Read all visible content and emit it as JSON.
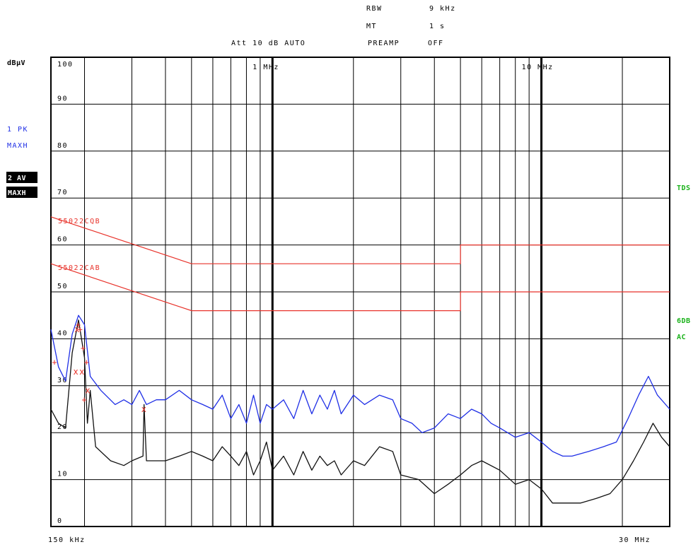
{
  "header": {
    "rbw_label": "RBW",
    "rbw_value": "9 kHz",
    "mt_label": "MT",
    "mt_value": "1 s",
    "att": "Att 10 dB AUTO",
    "preamp_label": "PREAMP",
    "preamp_value": "OFF"
  },
  "y_unit": "dBµV",
  "trace1_label": [
    "1 PK",
    "MAXH"
  ],
  "trace2_label": [
    "2 AV",
    "MAXH"
  ],
  "right_labels": {
    "tds": "TDS",
    "sixdb": "6DB",
    "ac": "AC"
  },
  "colors": {
    "pk": "#1f2fe6",
    "av": "#111111",
    "limit": "#e8322a",
    "grid": "#000000",
    "right": "#1ab21a"
  },
  "chart_data": {
    "type": "line",
    "x_scale": "log",
    "x_unit": "MHz",
    "xlim": [
      0.15,
      30
    ],
    "ylim": [
      0,
      100
    ],
    "y_ticks": [
      0,
      10,
      20,
      30,
      40,
      50,
      60,
      70,
      80,
      90,
      100
    ],
    "y_tick_labels": [
      "0",
      "10",
      "20",
      "30",
      "40",
      "50",
      "60",
      "70",
      "80",
      "90",
      "100"
    ],
    "x_tick_labels": [
      {
        "x": 0.15,
        "label": "150 kHz"
      },
      {
        "x": 1,
        "label": "1 MHz"
      },
      {
        "x": 10,
        "label": "10 MHz"
      },
      {
        "x": 30,
        "label": "30 MHz"
      }
    ],
    "limit_lines": [
      {
        "name": "55022CQB",
        "points": [
          [
            0.15,
            66
          ],
          [
            0.5,
            56
          ],
          [
            5,
            56
          ],
          [
            5,
            60
          ],
          [
            30,
            60
          ]
        ]
      },
      {
        "name": "55022CAB",
        "points": [
          [
            0.15,
            56
          ],
          [
            0.5,
            46
          ],
          [
            5,
            46
          ],
          [
            5,
            50
          ],
          [
            30,
            50
          ]
        ]
      }
    ],
    "series": [
      {
        "name": "1 PK MAXH",
        "points": [
          [
            0.15,
            42
          ],
          [
            0.16,
            34
          ],
          [
            0.17,
            31
          ],
          [
            0.18,
            41
          ],
          [
            0.19,
            45
          ],
          [
            0.2,
            43
          ],
          [
            0.21,
            32
          ],
          [
            0.23,
            29
          ],
          [
            0.26,
            26
          ],
          [
            0.28,
            27
          ],
          [
            0.3,
            26
          ],
          [
            0.32,
            29
          ],
          [
            0.34,
            26
          ],
          [
            0.37,
            27
          ],
          [
            0.4,
            27
          ],
          [
            0.45,
            29
          ],
          [
            0.5,
            27
          ],
          [
            0.55,
            26
          ],
          [
            0.6,
            25
          ],
          [
            0.65,
            28
          ],
          [
            0.7,
            23
          ],
          [
            0.75,
            26
          ],
          [
            0.8,
            22
          ],
          [
            0.85,
            28
          ],
          [
            0.9,
            22
          ],
          [
            0.95,
            26
          ],
          [
            1.0,
            25
          ],
          [
            1.1,
            27
          ],
          [
            1.2,
            23
          ],
          [
            1.3,
            29
          ],
          [
            1.4,
            24
          ],
          [
            1.5,
            28
          ],
          [
            1.6,
            25
          ],
          [
            1.7,
            29
          ],
          [
            1.8,
            24
          ],
          [
            2.0,
            28
          ],
          [
            2.2,
            26
          ],
          [
            2.5,
            28
          ],
          [
            2.8,
            27
          ],
          [
            3.0,
            23
          ],
          [
            3.3,
            22
          ],
          [
            3.6,
            20
          ],
          [
            4.0,
            21
          ],
          [
            4.5,
            24
          ],
          [
            5.0,
            23
          ],
          [
            5.5,
            25
          ],
          [
            6.0,
            24
          ],
          [
            6.5,
            22
          ],
          [
            7.0,
            21
          ],
          [
            8.0,
            19
          ],
          [
            9.0,
            20
          ],
          [
            10,
            18
          ],
          [
            11,
            16
          ],
          [
            12,
            15
          ],
          [
            13,
            15
          ],
          [
            15,
            16
          ],
          [
            17,
            17
          ],
          [
            19,
            18
          ],
          [
            21,
            23
          ],
          [
            23,
            28
          ],
          [
            25,
            32
          ],
          [
            27,
            28
          ],
          [
            30,
            25
          ]
        ]
      },
      {
        "name": "2 AV MAXH",
        "points": [
          [
            0.15,
            25
          ],
          [
            0.16,
            22
          ],
          [
            0.17,
            21
          ],
          [
            0.18,
            37
          ],
          [
            0.19,
            44
          ],
          [
            0.2,
            36
          ],
          [
            0.205,
            22
          ],
          [
            0.21,
            29
          ],
          [
            0.22,
            17
          ],
          [
            0.25,
            14
          ],
          [
            0.28,
            13
          ],
          [
            0.3,
            14
          ],
          [
            0.33,
            15
          ],
          [
            0.333,
            26
          ],
          [
            0.34,
            14
          ],
          [
            0.4,
            14
          ],
          [
            0.45,
            15
          ],
          [
            0.5,
            16
          ],
          [
            0.55,
            15
          ],
          [
            0.6,
            14
          ],
          [
            0.65,
            17
          ],
          [
            0.7,
            15
          ],
          [
            0.75,
            13
          ],
          [
            0.8,
            16
          ],
          [
            0.85,
            11
          ],
          [
            0.9,
            14
          ],
          [
            0.95,
            18
          ],
          [
            1.0,
            12
          ],
          [
            1.1,
            15
          ],
          [
            1.2,
            11
          ],
          [
            1.3,
            16
          ],
          [
            1.4,
            12
          ],
          [
            1.5,
            15
          ],
          [
            1.6,
            13
          ],
          [
            1.7,
            14
          ],
          [
            1.8,
            11
          ],
          [
            2.0,
            14
          ],
          [
            2.2,
            13
          ],
          [
            2.5,
            17
          ],
          [
            2.8,
            16
          ],
          [
            3.0,
            11
          ],
          [
            3.5,
            10
          ],
          [
            4.0,
            7
          ],
          [
            4.5,
            9
          ],
          [
            5.0,
            11
          ],
          [
            5.5,
            13
          ],
          [
            6.0,
            14
          ],
          [
            7.0,
            12
          ],
          [
            8.0,
            9
          ],
          [
            9.0,
            10
          ],
          [
            10,
            8
          ],
          [
            11,
            5
          ],
          [
            12,
            5
          ],
          [
            14,
            5
          ],
          [
            16,
            6
          ],
          [
            18,
            7
          ],
          [
            20,
            10
          ],
          [
            22,
            14
          ],
          [
            24,
            18
          ],
          [
            26,
            22
          ],
          [
            28,
            19
          ],
          [
            30,
            17
          ]
        ]
      }
    ],
    "markers": [
      {
        "sym": "+",
        "x": 0.155,
        "y": 35
      },
      {
        "sym": "+",
        "x": 0.19,
        "y": 43
      },
      {
        "sym": "+",
        "x": 0.193,
        "y": 42
      },
      {
        "sym": "x",
        "x": 0.188,
        "y": 42
      },
      {
        "sym": "x",
        "x": 0.186,
        "y": 33
      },
      {
        "sym": "x",
        "x": 0.196,
        "y": 33
      },
      {
        "sym": "+",
        "x": 0.198,
        "y": 38
      },
      {
        "sym": "+",
        "x": 0.204,
        "y": 35
      },
      {
        "sym": "x",
        "x": 0.206,
        "y": 29
      },
      {
        "sym": "+",
        "x": 0.2,
        "y": 27
      },
      {
        "sym": "x",
        "x": 0.333,
        "y": 25
      }
    ]
  }
}
